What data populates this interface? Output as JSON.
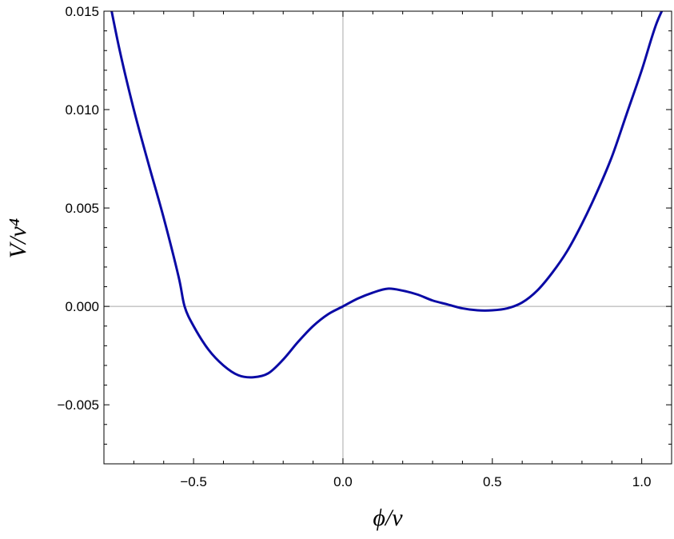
{
  "chart_data": {
    "type": "line",
    "title": "",
    "xlabel": "ϕ/v",
    "ylabel": "V/v⁴",
    "xlim": [
      -0.8,
      1.1
    ],
    "ylim": [
      -0.008,
      0.015
    ],
    "grid": false,
    "zero_axes": true,
    "x_ticks": [
      {
        "value": -0.5,
        "label": "−0.5"
      },
      {
        "value": 0.0,
        "label": "0.0"
      },
      {
        "value": 0.5,
        "label": "0.5"
      },
      {
        "value": 1.0,
        "label": "1.0"
      }
    ],
    "y_ticks": [
      {
        "value": 0.015,
        "label": "0.015"
      },
      {
        "value": 0.01,
        "label": "0.010"
      },
      {
        "value": 0.005,
        "label": "0.005"
      },
      {
        "value": 0.0,
        "label": "0.000"
      },
      {
        "value": -0.005,
        "label": "−0.005"
      }
    ],
    "series": [
      {
        "color": "#0a0aa5",
        "points": [
          [
            -0.8,
            0.017
          ],
          [
            -0.75,
            0.0132
          ],
          [
            -0.7,
            0.01
          ],
          [
            -0.65,
            0.0072
          ],
          [
            -0.6,
            0.0045
          ],
          [
            -0.55,
            0.0015
          ],
          [
            -0.53,
            0.0
          ],
          [
            -0.5,
            -0.001
          ],
          [
            -0.45,
            -0.0022
          ],
          [
            -0.4,
            -0.003
          ],
          [
            -0.35,
            -0.0035
          ],
          [
            -0.3,
            -0.0036
          ],
          [
            -0.25,
            -0.0034
          ],
          [
            -0.2,
            -0.0027
          ],
          [
            -0.15,
            -0.0018
          ],
          [
            -0.1,
            -0.001
          ],
          [
            -0.05,
            -0.0004
          ],
          [
            0.0,
            0.0
          ],
          [
            0.05,
            0.0004
          ],
          [
            0.1,
            0.0007
          ],
          [
            0.15,
            0.0009
          ],
          [
            0.2,
            0.0008
          ],
          [
            0.25,
            0.0006
          ],
          [
            0.3,
            0.0003
          ],
          [
            0.35,
            0.0001
          ],
          [
            0.4,
            -0.0001
          ],
          [
            0.45,
            -0.0002
          ],
          [
            0.5,
            -0.0002
          ],
          [
            0.55,
            -0.0001
          ],
          [
            0.6,
            0.0002
          ],
          [
            0.65,
            0.0008
          ],
          [
            0.7,
            0.0017
          ],
          [
            0.75,
            0.0028
          ],
          [
            0.8,
            0.0042
          ],
          [
            0.85,
            0.0058
          ],
          [
            0.9,
            0.0076
          ],
          [
            0.95,
            0.0098
          ],
          [
            1.0,
            0.012
          ],
          [
            1.05,
            0.0144
          ],
          [
            1.1,
            0.016
          ]
        ]
      }
    ]
  }
}
